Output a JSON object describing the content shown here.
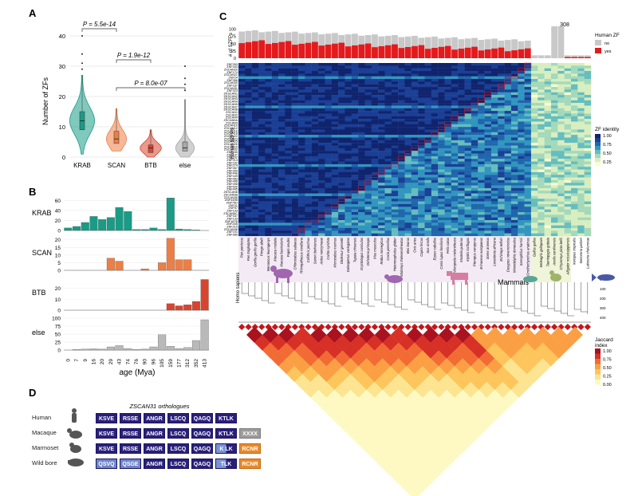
{
  "panels": {
    "A": {
      "label": "A",
      "ylabel": "Number of ZFs",
      "yticks": [
        "0",
        "10",
        "20",
        "30",
        "40"
      ],
      "groups": [
        {
          "name": "KRAB",
          "color": "#1a9b86",
          "median": 12,
          "q1": 9,
          "q3": 15,
          "min": 1,
          "max": 27,
          "max_density_width": 1.0
        },
        {
          "name": "SCAN",
          "color": "#ec7f46",
          "median": 6,
          "q1": 4.5,
          "q3": 8.5,
          "min": 2,
          "max": 16,
          "max_density_width": 0.8
        },
        {
          "name": "BTB",
          "color": "#d8452f",
          "median": 3,
          "q1": 1.5,
          "q3": 4,
          "min": 0,
          "max": 9,
          "max_density_width": 0.85
        },
        {
          "name": "else",
          "color": "#a9a9a9",
          "median": 3,
          "q1": 2,
          "q3": 5,
          "min": 0,
          "max": 19,
          "max_density_width": 0.75
        }
      ],
      "comparisons": [
        {
          "a": "KRAB",
          "b": "SCAN",
          "label": "P = 5.5e-14"
        },
        {
          "a": "SCAN",
          "b": "BTB",
          "label": "P = 1.9e-12"
        },
        {
          "a": "SCAN",
          "b": "else",
          "label": "P = 8.0e-07"
        }
      ]
    },
    "B": {
      "label": "B",
      "xlabel": "age (Mya)",
      "age_ticks": [
        "0",
        "7",
        "9",
        "16",
        "20",
        "29",
        "43",
        "74",
        "76",
        "90",
        "96",
        "105",
        "159",
        "177",
        "312",
        "352",
        "413"
      ],
      "series": [
        {
          "name": "KRAB",
          "color": "#1a9b86",
          "yticks": [
            "0",
            "20",
            "40",
            "60"
          ],
          "ymax": 70,
          "values": [
            5,
            8,
            16,
            28,
            22,
            26,
            46,
            38,
            2,
            2,
            5,
            2,
            65,
            3,
            2,
            1,
            0
          ]
        },
        {
          "name": "SCAN",
          "color": "#ec7f46",
          "yticks": [
            "0",
            "5",
            "10",
            "15",
            "20"
          ],
          "ymax": 23,
          "values": [
            0,
            0,
            0,
            0,
            0,
            8,
            6,
            0,
            0,
            1,
            0,
            5,
            21,
            7,
            7,
            0,
            0
          ]
        },
        {
          "name": "BTB",
          "color": "#d8452f",
          "yticks": [
            "0",
            "10",
            "20"
          ],
          "ymax": 32,
          "values": [
            0,
            0,
            0,
            0,
            0,
            0,
            0,
            0,
            0,
            0,
            0,
            0,
            6,
            4,
            5,
            8,
            28
          ]
        },
        {
          "name": "else",
          "color": "#b9b9b9",
          "yticks": [
            "0",
            "25",
            "50",
            "75",
            "100"
          ],
          "ymax": 110,
          "values": [
            0,
            2,
            3,
            4,
            3,
            10,
            14,
            5,
            2,
            3,
            10,
            48,
            12,
            5,
            8,
            30,
            95
          ]
        }
      ]
    },
    "C": {
      "label": "C",
      "top_ylabel": "# of SZFPs",
      "top_yticks": [
        "0",
        "25",
        "50",
        "75",
        "100"
      ],
      "top_annotation": "308",
      "human_zf_legend": {
        "title": "Human ZF",
        "items": [
          {
            "label": "no",
            "color": "#c8c8c8"
          },
          {
            "label": "yes",
            "color": "#e41a1c"
          }
        ]
      },
      "heat_ylabel": "Human SZFPs",
      "zf_identity_legend": {
        "title": "ZF identity",
        "ticks": [
          "1.00",
          "0.75",
          "0.50",
          "0.25"
        ]
      },
      "jaccard_legend": {
        "title": "Jaccard index",
        "ticks": [
          "1.00",
          "0.75",
          "0.50",
          "0.25",
          "0.00"
        ]
      },
      "clade_label": "Mammals",
      "root_label": "Homo sapiens",
      "time_ticks": [
        "0",
        "100",
        "200",
        "300",
        "400"
      ],
      "species": [
        "Pan paniscus",
        "Pan troglodytes",
        "Gorilla gorilla gorilla",
        "Pongo abelii",
        "Nomascus leucogenys",
        "Macaca mulatta",
        "Macaca fascicularis",
        "Papio anubis",
        "Chlorocebus sabaeus",
        "Rhinopithecus roxellana",
        "Callithrix jacchus",
        "Saimiri boliviensis",
        "Aotus nancymaae",
        "Carlito syrichta",
        "Microcebus murinus",
        "Otolemur garnettii",
        "Galeopterus variegatus",
        "Tupaia chinensis",
        "Oryctolagus cuniculus",
        "Ochotona princeps",
        "Mus musculus",
        "Rattus norvegicus",
        "Cavia porcellus",
        "Heterocephalus glaber",
        "Ictidomys tridecemlineatus",
        "Bos taurus",
        "Ovis aries",
        "Capra hircus",
        "Sus scrofa",
        "Equus caballus",
        "Canis lupus familiaris",
        "Felis catus",
        "Ailuropoda melanoleuca",
        "Mustela putorius",
        "Myotis lucifugus",
        "Pteropus vampyrus",
        "Erinaceus europaeus",
        "Sorex araneus",
        "Loxodonta africana",
        "Echinops telfairi",
        "Dasypus novemcinctus",
        "Monodelphis domestica",
        "Sarcophilus harrisii",
        "Ornithorhynchus anatinus",
        "Gallus gallus",
        "Meleagris gallopavo",
        "Taeniopygia guttata",
        "Anolis carolinensis",
        "Chrysemys picta bellii",
        "Alligator mississippiensis",
        "Xenopus tropicalis",
        "Nanorana parkeri",
        "Latimeria chalumnae"
      ],
      "szfp_rows": [
        "ZNF263",
        "ZNF444",
        "ZSCAN20",
        "ZNF174",
        "ZSCAN21",
        "ZNF24",
        "ZNF396",
        "ZSCAN30",
        "ZNF187",
        "ZSCAN31",
        "ZNF323",
        "ZKSCAN1",
        "ZKSCAN2",
        "ZKSCAN3",
        "ZKSCAN4",
        "ZKSCAN5",
        "ZKSCAN7",
        "ZKSCAN8",
        "ZSCAN1",
        "ZSCAN2",
        "ZSCAN4",
        "ZSCAN5A",
        "ZSCAN9",
        "ZSCAN10",
        "ZSCAN12",
        "ZSCAN16",
        "ZSCAN18",
        "ZSCAN22",
        "ZSCAN23",
        "ZSCAN25",
        "ZSCAN26",
        "ZSCAN29",
        "ZSCAN32",
        "ZNF165",
        "ZNF197",
        "ZNF202",
        "ZNF213",
        "ZNF232",
        "ZNF274",
        "ZNF287",
        "ZNF394",
        "ZNF446",
        "ZNF449",
        "ZNF483",
        "ZNF496",
        "ZNF498",
        "ZNF500",
        "ZNF445",
        "ZKSCAN6",
        "ZSCAN5B",
        "ZSCAN35",
        "ZNF449B",
        "ZNF75D",
        "ZNF41",
        "ZNF97",
        "ZNF193",
        "ZSCAN5C",
        "ZNF167",
        "ZNF133",
        "ZNF187B",
        "ZNF24B",
        "ZNF215",
        "ZSCAN36",
        "ZNF191",
        "ZNF389"
      ]
    },
    "D": {
      "label": "D",
      "title": "ZSCAN31 orthologues",
      "rows": [
        {
          "species": "Human",
          "motifs": [
            {
              "t": "KSVE",
              "k": "dark"
            },
            {
              "t": "RSSE",
              "k": "dark"
            },
            {
              "t": "ANGR",
              "k": "dark"
            },
            {
              "t": "LSCQ",
              "k": "dark"
            },
            {
              "t": "QAGQ",
              "k": "dark"
            },
            {
              "t": "KTLK",
              "k": "dark"
            }
          ]
        },
        {
          "species": "Macaque",
          "motifs": [
            {
              "t": "KSVE",
              "k": "dark"
            },
            {
              "t": "RSSE",
              "k": "dark"
            },
            {
              "t": "ANGR",
              "k": "dark"
            },
            {
              "t": "LSCQ",
              "k": "dark"
            },
            {
              "t": "QAGQ",
              "k": "dark"
            },
            {
              "t": "KTLK",
              "k": "dark"
            },
            {
              "t": "XXXX",
              "k": "grey"
            }
          ]
        },
        {
          "species": "Marmoset",
          "motifs": [
            {
              "t": "KSVE",
              "k": "dark"
            },
            {
              "t": "RSSE",
              "k": "dark"
            },
            {
              "t": "ANGR",
              "k": "dark"
            },
            {
              "t": "LSCQ",
              "k": "dark"
            },
            {
              "t": "QAGQ",
              "k": "dark"
            },
            {
              "t": "K LK",
              "k": "mixed"
            },
            {
              "t": "RCNR",
              "k": "orange"
            }
          ]
        },
        {
          "species": "Wild bore",
          "motifs": [
            {
              "t": "QSVQ",
              "k": "pale"
            },
            {
              "t": "QSGE",
              "k": "pale"
            },
            {
              "t": "ANGR",
              "k": "dark"
            },
            {
              "t": "LSCQ",
              "k": "dark"
            },
            {
              "t": "QAGQ",
              "k": "dark"
            },
            {
              "t": "TLK",
              "k": "mixed"
            },
            {
              "t": "RCNR",
              "k": "orange"
            }
          ]
        }
      ]
    }
  }
}
